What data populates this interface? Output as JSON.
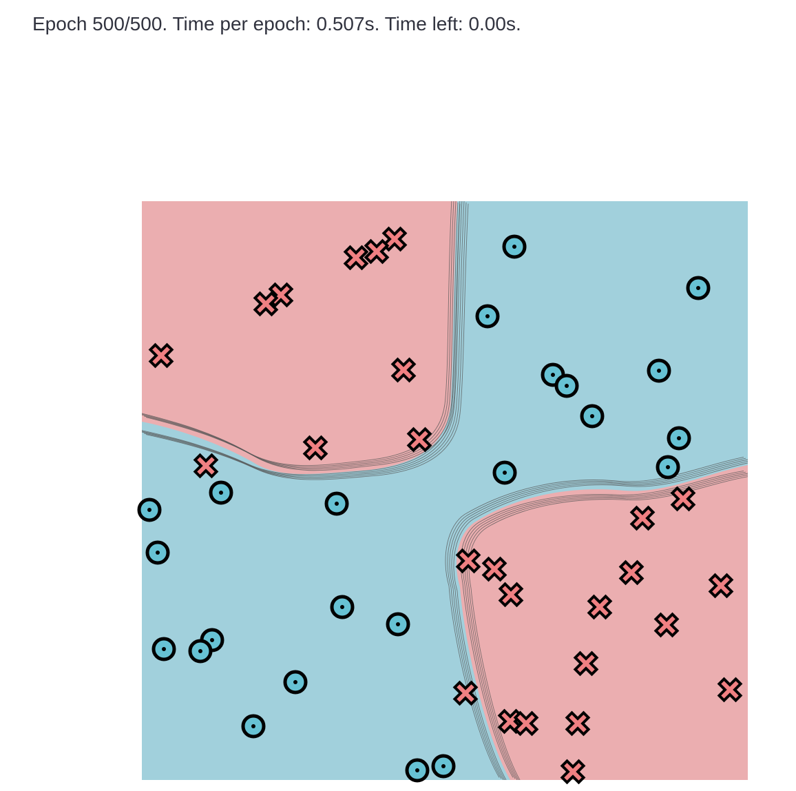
{
  "status": {
    "text": "Epoch 500/500. Time per epoch: 0.507s. Time left: 0.00s."
  },
  "colors": {
    "class_a_region": "#a1d0dc",
    "class_b_region": "#ebaeb0",
    "class_a_marker": "#67c2d4",
    "class_b_marker": "#f08082",
    "marker_outline": "#000000",
    "contour_line": "#555555"
  },
  "chart_data": {
    "type": "scatter",
    "chart_kind": "decision-boundary",
    "grid": false,
    "legend": "none",
    "series": [
      {
        "marker": "circle-dot",
        "color": "#67c2d4",
        "points": [
          [
            541,
            66
          ],
          [
            808,
            126
          ],
          [
            502,
            167
          ],
          [
            597,
            252
          ],
          [
            617,
            268
          ],
          [
            654,
            312
          ],
          [
            751,
            246
          ],
          [
            780,
            344
          ],
          [
            764,
            386
          ],
          [
            527,
            394
          ],
          [
            115,
            423
          ],
          [
            283,
            439
          ],
          [
            11,
            448
          ],
          [
            23,
            510
          ],
          [
            291,
            589
          ],
          [
            372,
            614
          ],
          [
            102,
            637
          ],
          [
            85,
            653
          ],
          [
            32,
            650
          ],
          [
            223,
            698
          ],
          [
            162,
            762
          ],
          [
            400,
            826
          ],
          [
            438,
            820
          ]
        ]
      },
      {
        "marker": "cross",
        "color": "#f08082",
        "points": [
          [
            367,
            55
          ],
          [
            341,
            73
          ],
          [
            311,
            82
          ],
          [
            202,
            136
          ],
          [
            180,
            149
          ],
          [
            28,
            224
          ],
          [
            380,
            245
          ],
          [
            403,
            346
          ],
          [
            252,
            358
          ],
          [
            93,
            384
          ],
          [
            786,
            432
          ],
          [
            727,
            460
          ],
          [
            474,
            522
          ],
          [
            512,
            534
          ],
          [
            536,
            571
          ],
          [
            711,
            539
          ],
          [
            665,
            589
          ],
          [
            841,
            558
          ],
          [
            762,
            615
          ],
          [
            645,
            671
          ],
          [
            470,
            714
          ],
          [
            854,
            709
          ],
          [
            535,
            755
          ],
          [
            558,
            758
          ],
          [
            633,
            758
          ],
          [
            626,
            828
          ]
        ]
      }
    ]
  }
}
